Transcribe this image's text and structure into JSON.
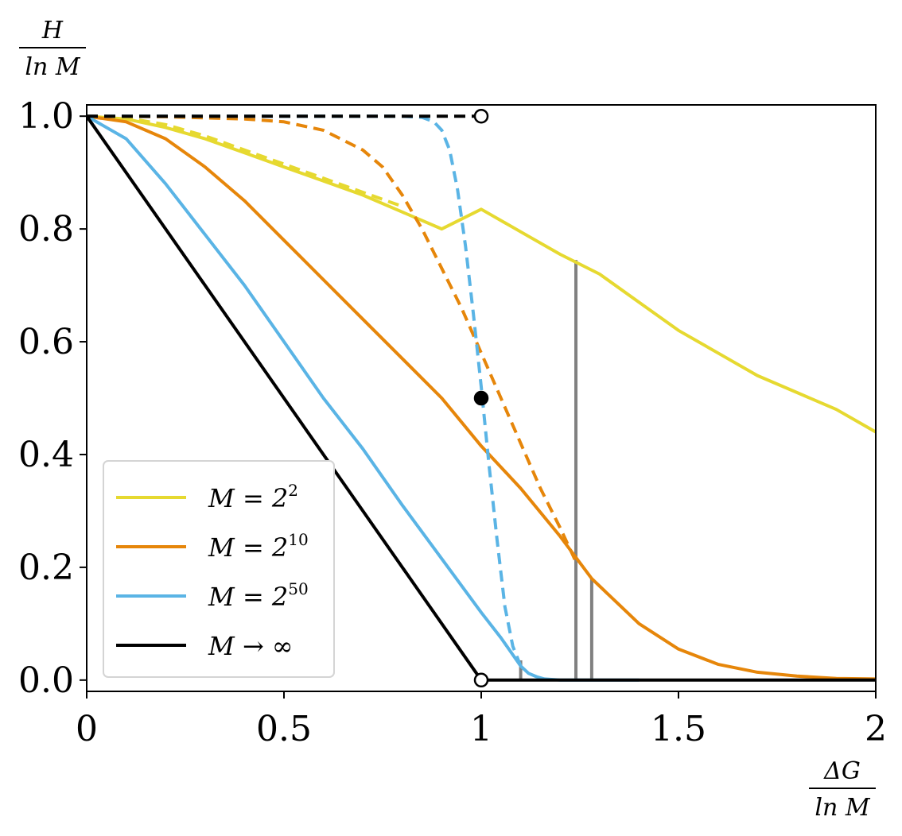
{
  "chart_data": {
    "type": "line",
    "xlabel": {
      "numerator": "ΔG",
      "denominator": "ln M"
    },
    "ylabel": {
      "numerator": "H",
      "denominator": "ln M"
    },
    "xlim": [
      0,
      2
    ],
    "ylim": [
      -0.02,
      1.02
    ],
    "xticks": [
      {
        "value": 0,
        "label": "0"
      },
      {
        "value": 0.5,
        "label": "0.5"
      },
      {
        "value": 1,
        "label": "1"
      },
      {
        "value": 1.5,
        "label": "1.5"
      },
      {
        "value": 2,
        "label": "2"
      }
    ],
    "yticks": [
      {
        "value": 0.0,
        "label": "0.0"
      },
      {
        "value": 0.2,
        "label": "0.2"
      },
      {
        "value": 0.4,
        "label": "0.4"
      },
      {
        "value": 0.6,
        "label": "0.6"
      },
      {
        "value": 0.8,
        "label": "0.8"
      },
      {
        "value": 1.0,
        "label": "1.0"
      }
    ],
    "grid": false,
    "legend_position": "lower-left",
    "legend": [
      {
        "label": "M = 2",
        "sup": "2",
        "color": "#e6d930"
      },
      {
        "label": "M = 2",
        "sup": "10",
        "color": "#e6860a"
      },
      {
        "label": "M = 2",
        "sup": "50",
        "color": "#5ab4e5"
      },
      {
        "label": "M → ∞",
        "sup": "",
        "color": "#000000"
      }
    ],
    "series": [
      {
        "color": "#e6d930",
        "style": "solid",
        "x": [
          0,
          0.1,
          0.2,
          0.3,
          0.4,
          0.5,
          0.6,
          0.7,
          0.8,
          0.9,
          1.0,
          1.1,
          1.2,
          1.3,
          1.4,
          1.5,
          1.6,
          1.7,
          1.8,
          1.9,
          2.0
        ],
        "y": [
          1.0,
          0.995,
          0.98,
          0.96,
          0.935,
          0.91,
          0.885,
          0.86,
          0.83,
          0.8,
          0.835,
          0.795,
          0.755,
          0.72,
          0.67,
          0.62,
          0.58,
          0.54,
          0.51,
          0.48,
          0.44
        ]
      },
      {
        "color": "#e6d930",
        "style": "dashed",
        "x": [
          0,
          0.1,
          0.2,
          0.3,
          0.4,
          0.5,
          0.6,
          0.7,
          0.8
        ],
        "y": [
          1.0,
          0.997,
          0.985,
          0.965,
          0.94,
          0.915,
          0.89,
          0.865,
          0.84
        ]
      },
      {
        "color": "#e6860a",
        "style": "solid",
        "x": [
          0,
          0.1,
          0.2,
          0.3,
          0.4,
          0.5,
          0.6,
          0.7,
          0.8,
          0.9,
          1.0,
          1.1,
          1.2,
          1.28,
          1.4,
          1.5,
          1.6,
          1.7,
          1.8,
          1.9,
          2.0
        ],
        "y": [
          1.0,
          0.99,
          0.96,
          0.91,
          0.85,
          0.78,
          0.71,
          0.64,
          0.57,
          0.5,
          0.415,
          0.34,
          0.255,
          0.18,
          0.1,
          0.055,
          0.028,
          0.014,
          0.007,
          0.003,
          0.002
        ]
      },
      {
        "color": "#e6860a",
        "style": "dashed",
        "x": [
          0,
          0.2,
          0.4,
          0.5,
          0.6,
          0.7,
          0.75,
          0.8,
          0.85,
          0.9,
          0.95,
          1.0,
          1.05,
          1.1,
          1.15,
          1.2,
          1.24
        ],
        "y": [
          1.0,
          0.999,
          0.995,
          0.99,
          0.975,
          0.94,
          0.91,
          0.86,
          0.8,
          0.73,
          0.66,
          0.58,
          0.5,
          0.42,
          0.34,
          0.27,
          0.21
        ]
      },
      {
        "color": "#5ab4e5",
        "style": "solid",
        "x": [
          0,
          0.1,
          0.2,
          0.3,
          0.4,
          0.5,
          0.6,
          0.7,
          0.8,
          0.9,
          1.0,
          1.05,
          1.1,
          1.12,
          1.14,
          1.16,
          1.2,
          1.3,
          1.4
        ],
        "y": [
          1.0,
          0.96,
          0.88,
          0.79,
          0.7,
          0.6,
          0.5,
          0.41,
          0.31,
          0.215,
          0.12,
          0.075,
          0.025,
          0.012,
          0.006,
          0.002,
          0.0,
          0.0,
          0.0
        ]
      },
      {
        "color": "#5ab4e5",
        "style": "dashed",
        "x": [
          0,
          0.5,
          0.8,
          0.85,
          0.88,
          0.9,
          0.92,
          0.94,
          0.96,
          0.98,
          1.0,
          1.02,
          1.04,
          1.06,
          1.08,
          1.1
        ],
        "y": [
          1.0,
          1.0,
          1.0,
          0.998,
          0.99,
          0.975,
          0.94,
          0.87,
          0.77,
          0.65,
          0.52,
          0.38,
          0.25,
          0.13,
          0.06,
          0.025
        ]
      },
      {
        "color": "#000000",
        "style": "solid",
        "x": [
          0,
          1.0
        ],
        "y": [
          1.0,
          0.0
        ]
      },
      {
        "color": "#000000",
        "style": "dashed",
        "x": [
          0,
          1.0
        ],
        "y": [
          1.0,
          1.0
        ]
      },
      {
        "color": "#000000",
        "style": "solid",
        "x": [
          1.0,
          2.0
        ],
        "y": [
          0.0,
          0.0
        ]
      }
    ],
    "vertical_lines": [
      {
        "x": 1.1,
        "y_top": 0.035,
        "color": "#808080"
      },
      {
        "x": 1.24,
        "y_top": 0.745,
        "color": "#808080"
      },
      {
        "x": 1.28,
        "y_top": 0.18,
        "color": "#808080"
      }
    ],
    "markers": [
      {
        "x": 1.0,
        "y": 1.0,
        "fill": "open"
      },
      {
        "x": 1.0,
        "y": 0.5,
        "fill": "filled"
      },
      {
        "x": 1.0,
        "y": 0.0,
        "fill": "open"
      }
    ]
  }
}
